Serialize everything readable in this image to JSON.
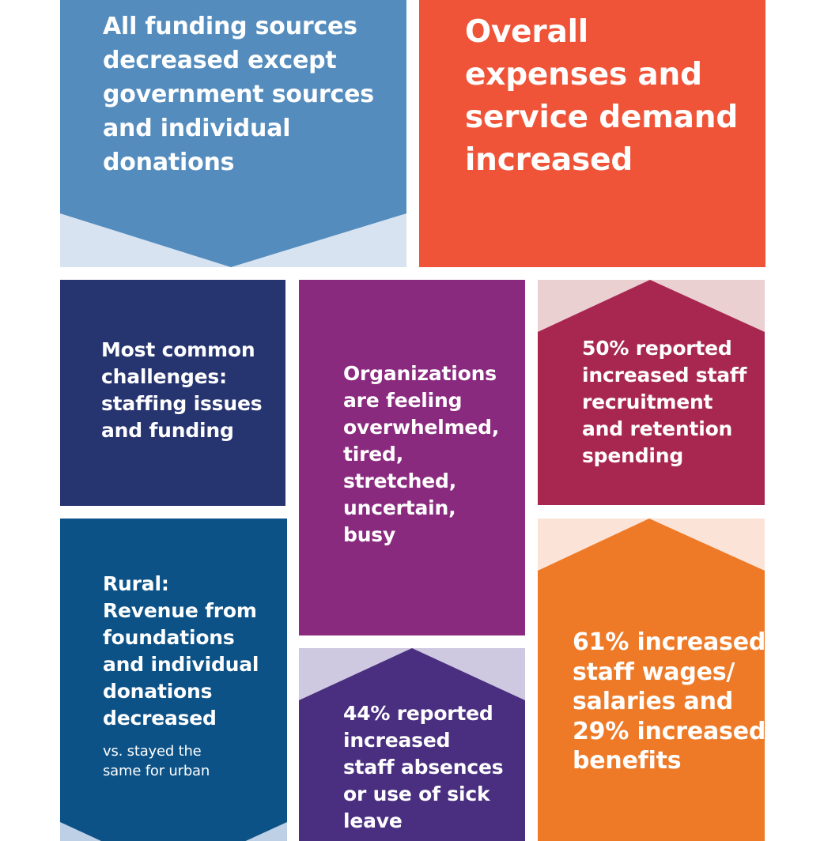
{
  "tiles": {
    "funding_sources": {
      "text": "All funding sources\ndecreased except\ngovernment sources\nand individual\ndonations",
      "color": "#548cbd",
      "tint": "#d7e3f1"
    },
    "expenses_demand": {
      "text": "Overall\nexpenses and\nservice demand\nincreased",
      "color": "#ef5438"
    },
    "common_challenges": {
      "text": "Most common\nchallenges:\nstaffing issues\nand funding",
      "color": "#263470"
    },
    "feelings": {
      "text": "Organizations\nare feeling\noverwhelmed,\ntired,\nstretched,\nuncertain,\nbusy",
      "color": "#8a2a7f"
    },
    "recruitment": {
      "text": "50% reported\nincreased staff\nrecruitment\nand retention\nspending",
      "color": "#a82751",
      "tint": "#ebd0d2"
    },
    "rural": {
      "text": "Rural:\nRevenue from\nfoundations\nand individual\ndonations\ndecreased",
      "subtext": "vs. stayed the\nsame for urban",
      "color": "#0c5287",
      "tint": "#bed0e5"
    },
    "absences": {
      "text": "44% reported\nincreased\nstaff absences\nor use of sick\nleave",
      "color": "#4a2f80",
      "tint": "#cec9e0"
    },
    "wages": {
      "text": "61% increased\nstaff wages/\nsalaries and\n29% increased\nbenefits",
      "color": "#ee7a27",
      "tint": "#fbe4d7"
    }
  }
}
